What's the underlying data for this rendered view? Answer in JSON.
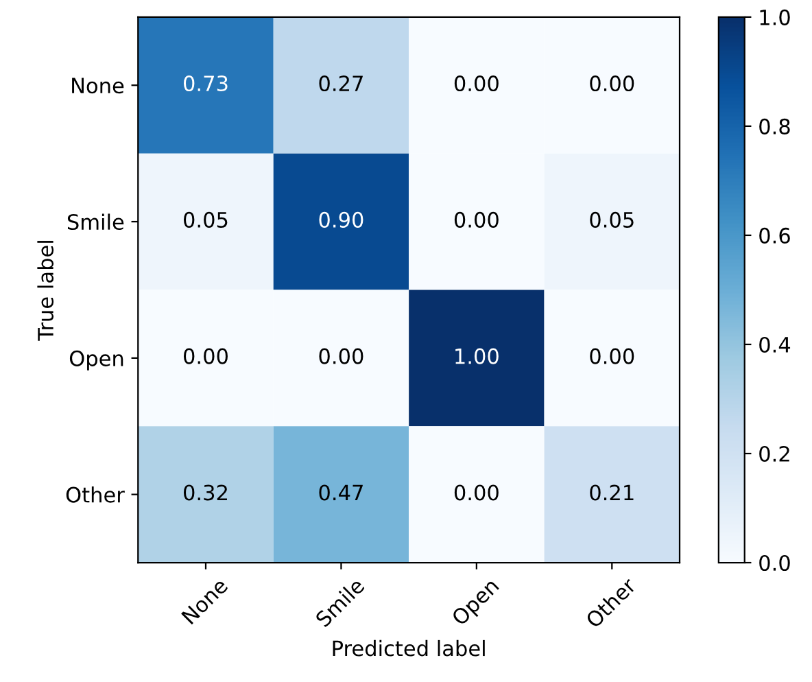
{
  "chart_data": {
    "type": "heatmap",
    "xlabel": "Predicted label",
    "ylabel": "True label",
    "categories": [
      "None",
      "Smile",
      "Open",
      "Other"
    ],
    "y_categories": [
      "None",
      "Smile",
      "Open",
      "Other"
    ],
    "cells": [
      [
        0.73,
        0.27,
        0.0,
        0.0
      ],
      [
        0.05,
        0.9,
        0.0,
        0.05
      ],
      [
        0.0,
        0.0,
        1.0,
        0.0
      ],
      [
        0.32,
        0.47,
        0.0,
        0.21
      ]
    ],
    "cell_labels": [
      [
        "0.73",
        "0.27",
        "0.00",
        "0.00"
      ],
      [
        "0.05",
        "0.90",
        "0.00",
        "0.05"
      ],
      [
        "0.00",
        "0.00",
        "1.00",
        "0.00"
      ],
      [
        "0.32",
        "0.47",
        "0.00",
        "0.21"
      ]
    ],
    "clim": [
      0,
      1
    ],
    "cticks": [
      {
        "value": 0,
        "label": "0.0"
      },
      {
        "value": 0.2,
        "label": "0.2"
      },
      {
        "value": 0.4,
        "label": "0.4"
      },
      {
        "value": 0.6,
        "label": "0.6"
      },
      {
        "value": 0.8,
        "label": "0.8"
      },
      {
        "value": 1.0,
        "label": "1.0"
      }
    ],
    "grid": false
  }
}
